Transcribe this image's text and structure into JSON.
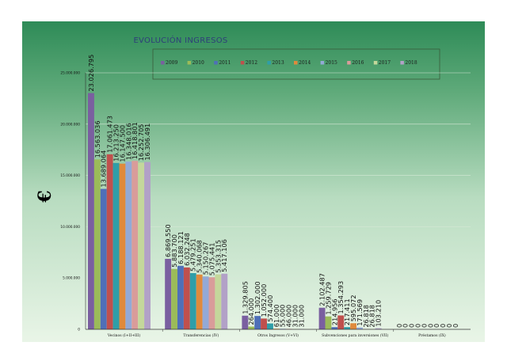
{
  "chart_data": {
    "type": "bar",
    "title": "EVOLUCIÓN INGRESOS",
    "ylabel": "€",
    "xlabel": "",
    "ylim": [
      0,
      25000000
    ],
    "yticks": [
      "0",
      "5.000.000",
      "10.000.000",
      "15.000.000",
      "20.000.000",
      "25.000.000"
    ],
    "yticks_values": [
      0,
      5000000,
      10000000,
      15000000,
      20000000,
      25000000
    ],
    "categories": [
      "Vecinos (I+II+III)",
      "Transferencias (IV)",
      "Otros Ingresos (V+VI)",
      "Subvenciones para inversiones (VII)",
      "Préstamos (IX)"
    ],
    "legend_position": "top",
    "series": [
      {
        "name": "2009",
        "color": "#7a5fa0",
        "values": [
          23026795,
          6869550,
          1329805,
          2102487,
          0
        ],
        "labels": [
          "23.026.795",
          "6.869.550",
          "1.329.805",
          "2.102.487",
          "0"
        ]
      },
      {
        "name": "2010",
        "color": "#9bbb59",
        "values": [
          16563036,
          5883700,
          264000,
          1259729,
          0
        ],
        "labels": [
          "16.563.036",
          "5.883.700",
          "264.000",
          "1.259.729",
          "0"
        ]
      },
      {
        "name": "2011",
        "color": "#4f6fb8",
        "values": [
          13689064,
          6188121,
          1302000,
          214956,
          0
        ],
        "labels": [
          "13.689.064",
          "6.188.121",
          "1.302.000",
          "214.956",
          "0"
        ]
      },
      {
        "name": "2012",
        "color": "#c0504d",
        "values": [
          17061473,
          6032248,
          1052000,
          1354293,
          0
        ],
        "labels": [
          "17.061.473",
          "6.032.248",
          "1.052.000",
          "1.354.293",
          "0"
        ]
      },
      {
        "name": "2013",
        "color": "#2f9ea8",
        "values": [
          16213250,
          5479251,
          574400,
          217411,
          0
        ],
        "labels": [
          "16.213.250",
          "5.479.251",
          "574.400",
          "217.411",
          "0"
        ]
      },
      {
        "name": "2014",
        "color": "#e08a3c",
        "values": [
          16147500,
          5340068,
          61000,
          595072,
          0
        ],
        "labels": [
          "16.147.500",
          "5.340.068",
          "61.000",
          "595.072",
          "0"
        ]
      },
      {
        "name": "2015",
        "color": "#93a9d6",
        "values": [
          16348016,
          5150267,
          55000,
          171569,
          0
        ],
        "labels": [
          "16.348.016",
          "5.150.267",
          "55.000",
          "171.569",
          "0"
        ]
      },
      {
        "name": "2016",
        "color": "#d99c9a",
        "values": [
          16418801,
          5075441,
          46000,
          26818,
          0
        ],
        "labels": [
          "16.418.801",
          "5.075.441",
          "46.000",
          "26.818",
          "0"
        ]
      },
      {
        "name": "2017",
        "color": "#c4d79b",
        "values": [
          16252705,
          5353315,
          31000,
          26818,
          0
        ],
        "labels": [
          "16.252.705",
          "5.353.315",
          "31.000",
          "26.818",
          "0"
        ]
      },
      {
        "name": "2018",
        "color": "#b2a1c7",
        "values": [
          16306491,
          5417106,
          31000,
          103210,
          0
        ],
        "labels": [
          "16.306.491",
          "5.417.106",
          "31.000",
          "103.210",
          "0"
        ]
      }
    ]
  },
  "colors": {
    "background_top": "#2e8b57",
    "background_bottom": "#e6f3e4",
    "accent": "#2e8b57"
  }
}
